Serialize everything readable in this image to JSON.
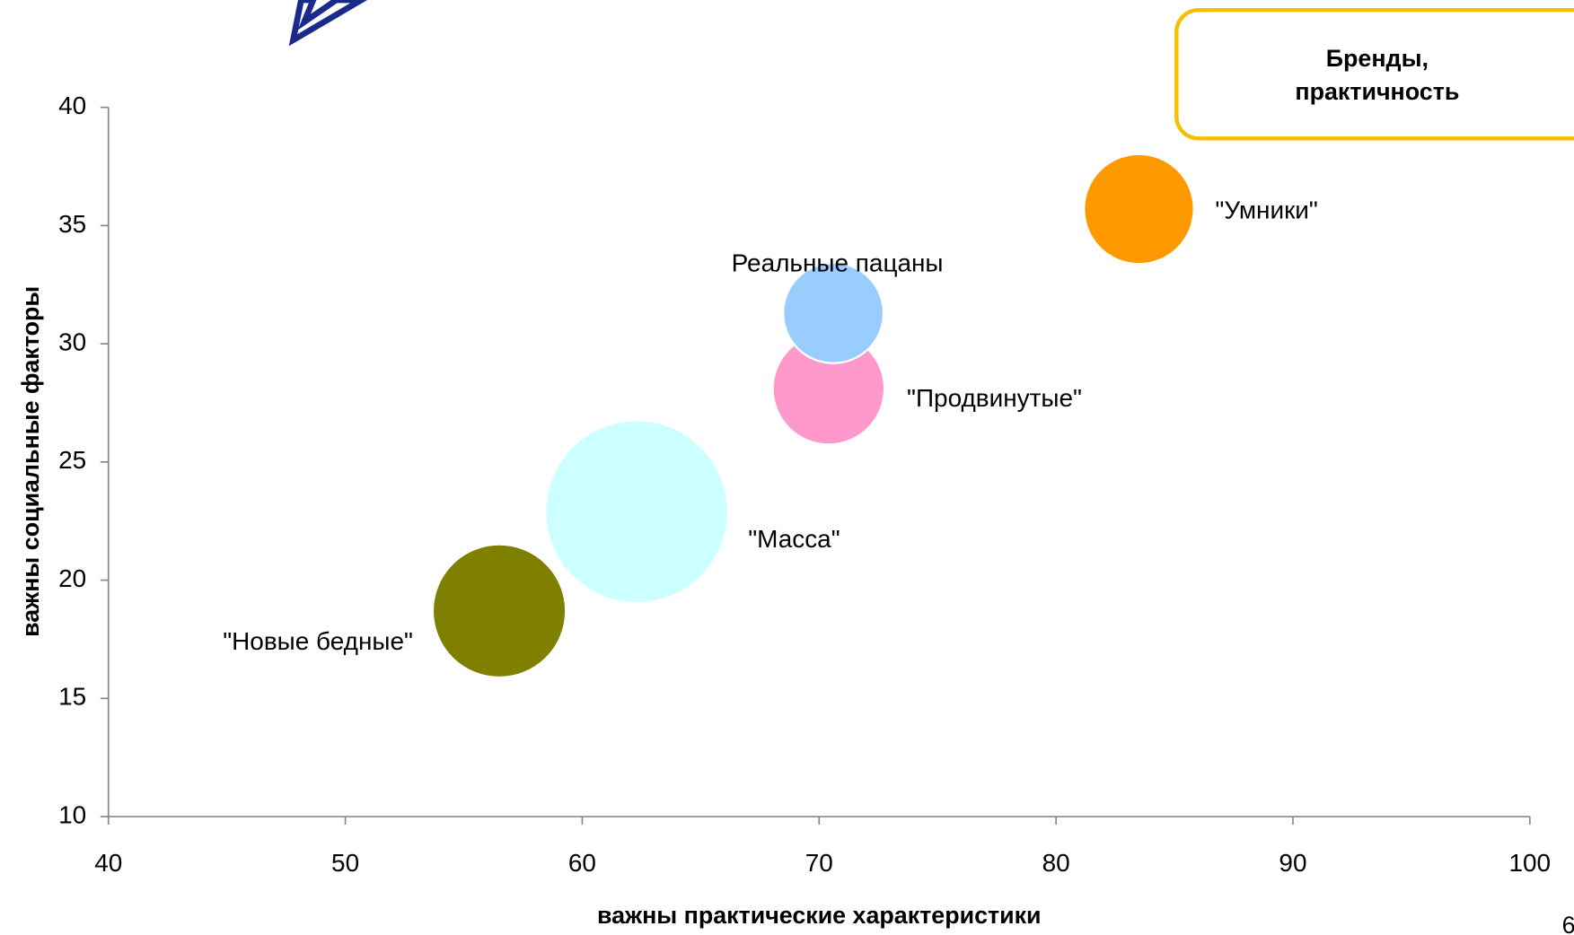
{
  "chart_data": {
    "type": "bubble",
    "xlabel": "важны практические характеристики",
    "ylabel": "важны социальные факторы",
    "xlim": [
      40,
      100
    ],
    "xticks": [
      40,
      50,
      60,
      70,
      80,
      90,
      100
    ],
    "ylim": [
      10,
      40
    ],
    "yticks": [
      10,
      15,
      20,
      25,
      30,
      35,
      40
    ],
    "series": [
      {
        "name": "\"Умники\"",
        "color": "#ff9900",
        "x": [
          83.5
        ],
        "values": [
          35.7
        ],
        "sizes": [
          30
        ]
      },
      {
        "name": "\"Масса\"",
        "color": "#ccffff",
        "x": [
          62.3
        ],
        "values": [
          22.9
        ],
        "sizes": [
          83
        ]
      },
      {
        "name": "\"Новые бедные\"",
        "color": "#808000",
        "x": [
          56.5
        ],
        "values": [
          18.7
        ],
        "sizes": [
          44
        ]
      },
      {
        "name": "\"Продвинутые\"",
        "color": "#ff99cc",
        "x": [
          70.4
        ],
        "values": [
          28.1
        ],
        "sizes": [
          31
        ]
      },
      {
        "name": "Реальные пацаны",
        "color": "#99ccff",
        "x": [
          70.6
        ],
        "values": [
          31.3
        ],
        "sizes": [
          25
        ]
      }
    ],
    "annotation": [
      "Бренды,",
      "практичность"
    ],
    "page_number": "6"
  }
}
